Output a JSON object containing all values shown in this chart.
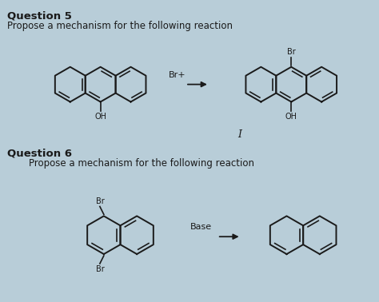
{
  "bg": "#b8cdd8",
  "tc": "#1a1a1a",
  "sc": "#1a1a1a",
  "q5_title": "Question 5",
  "q5_sub": "Propose a mechanism for the following reaction",
  "q6_title": "Question 6",
  "q6_sub": "Propose a mechanism for the following reaction",
  "reagent1": "Br+",
  "reagent2": "Base",
  "intermediate": "I",
  "lbl_Br": "Br",
  "lbl_OH": "OH"
}
